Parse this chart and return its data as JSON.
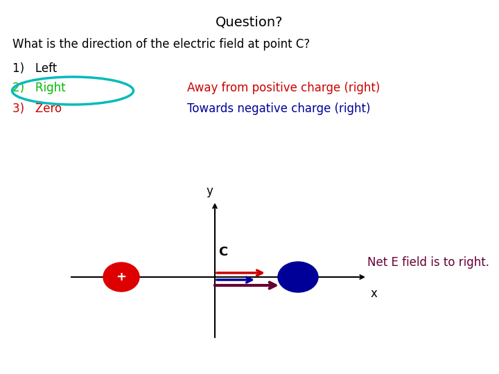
{
  "title": "Question?",
  "question": "What is the direction of the electric field at point C?",
  "opt1_text": "1)   Left",
  "opt2_text": "2)   Right",
  "opt3_text": "3)   Zero",
  "opt1_color": "black",
  "opt2_color": "#00bb00",
  "opt3_color": "#cc0000",
  "circle_color": "#00bbbb",
  "annotation1": "Away from positive charge (right)",
  "annotation1_color": "#cc0000",
  "annotation2": "Towards negative charge (right)",
  "annotation2_color": "#000099",
  "net_field_text": "Net E field is to right.",
  "net_field_color": "#660033",
  "bg_color": "#ffffff",
  "pos_charge_color": "#dd0000",
  "neg_charge_color": "#000099",
  "arrow_red_color": "#cc0000",
  "arrow_blue_color": "#000099",
  "arrow_maroon_color": "#660033"
}
